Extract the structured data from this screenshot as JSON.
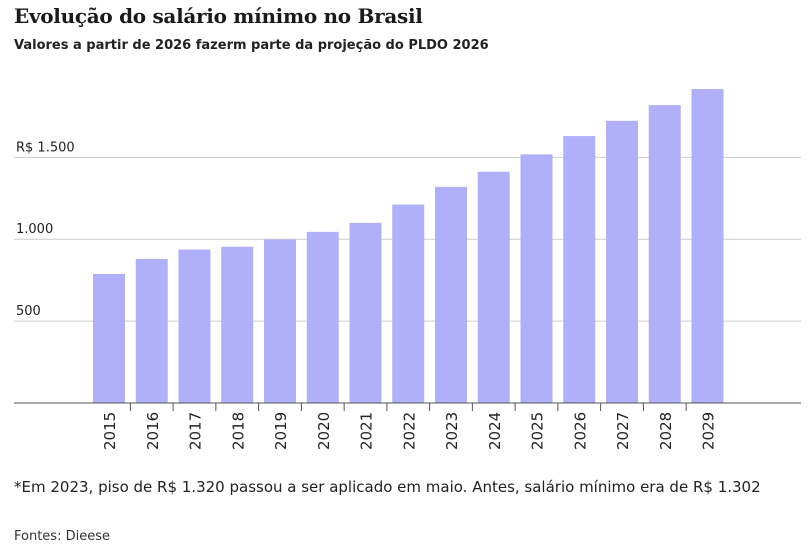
{
  "title": "Evolução do salário mínimo no Brasil",
  "subtitle": "Valores a partir de 2026 fazerm parte da projeção do PLDO 2026",
  "note": "*Em 2023, piso de R$ 1.320 passou a ser aplicado em maio. Antes, salário mínimo era de R$ 1.302",
  "source": "Fontes: Dieese",
  "colors": {
    "bar": "#b0b0f8",
    "grid": "#cccccc",
    "axis": "#555555"
  },
  "chart_data": {
    "type": "bar",
    "categories": [
      "2015",
      "2016",
      "2017",
      "2018",
      "2019",
      "2020",
      "2021",
      "2022",
      "2023",
      "2024",
      "2025",
      "2026",
      "2027",
      "2028",
      "2029"
    ],
    "values": [
      788,
      880,
      937,
      954,
      998,
      1045,
      1100,
      1212,
      1320,
      1412,
      1518,
      1630,
      1723,
      1819,
      1917
    ],
    "yticks": [
      500,
      1000,
      1500
    ],
    "ytick_labels": [
      "500",
      "1.000",
      "R$ 1.500"
    ],
    "ylim": [
      0,
      1960
    ],
    "grid": true,
    "xlabel": "",
    "ylabel": ""
  }
}
